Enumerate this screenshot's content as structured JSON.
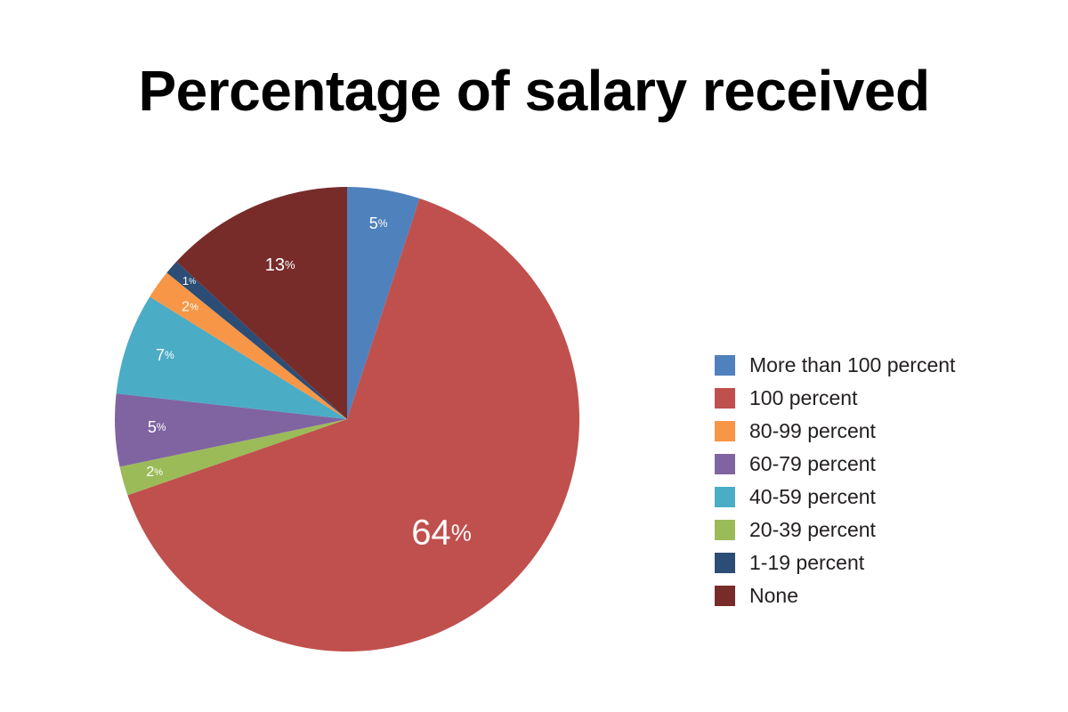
{
  "chart_data": {
    "type": "pie",
    "title": "Percentage of salary received",
    "start": "12 o'clock",
    "direction": "clockwise",
    "slices": [
      {
        "label": "More than 100 percent",
        "value": 5,
        "display": "5",
        "color": "#4f81bd"
      },
      {
        "label": "100 percent",
        "value": 64,
        "display": "64",
        "color": "#c0504d"
      },
      {
        "label": "20-39 percent",
        "value": 2,
        "display": "2",
        "color": "#9bbb59"
      },
      {
        "label": "60-79 percent",
        "value": 5,
        "display": "5",
        "color": "#8064a2"
      },
      {
        "label": "40-59 percent",
        "value": 7,
        "display": "7",
        "color": "#4bacc6"
      },
      {
        "label": "80-99 percent",
        "value": 2,
        "display": "2",
        "color": "#f79646"
      },
      {
        "label": "1-19 percent",
        "value": 1,
        "display": "1",
        "color": "#2c4d75"
      },
      {
        "label": "None",
        "value": 13,
        "display": "13",
        "color": "#772c2a"
      }
    ],
    "percent_sign": "%",
    "legend": {
      "placement": "right",
      "entries": [
        {
          "label": "More than 100 percent",
          "color": "#4f81bd"
        },
        {
          "label": "100 percent",
          "color": "#c0504d"
        },
        {
          "label": "80-99 percent",
          "color": "#f79646"
        },
        {
          "label": "60-79 percent",
          "color": "#8064a2"
        },
        {
          "label": "40-59 percent",
          "color": "#4bacc6"
        },
        {
          "label": "20-39 percent",
          "color": "#9bbb59"
        },
        {
          "label": "1-19 percent",
          "color": "#2c4d75"
        },
        {
          "label": "None",
          "color": "#772c2a"
        }
      ]
    }
  }
}
